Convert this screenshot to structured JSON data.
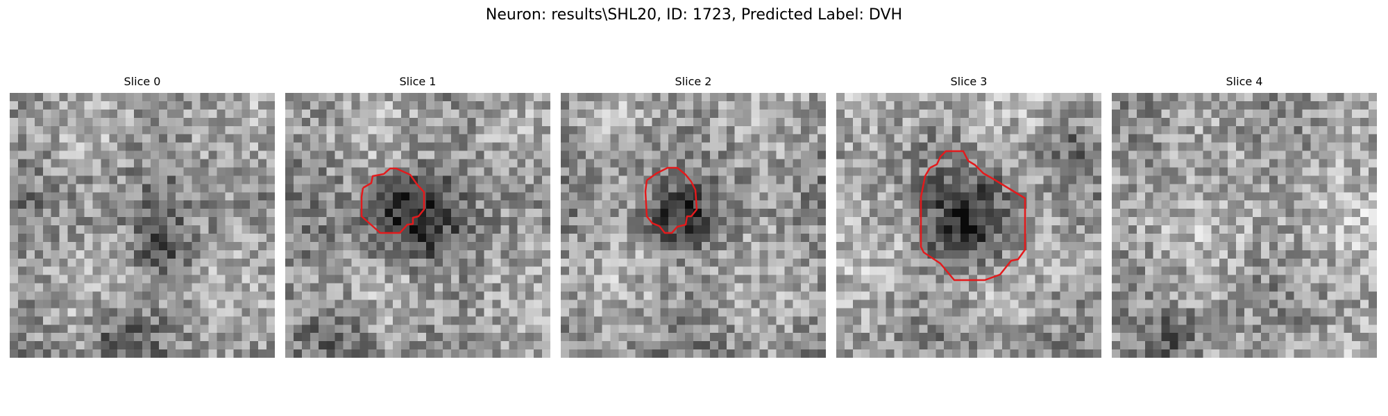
{
  "figure": {
    "title": "Neuron: results\\SHL20, ID: 1723, Predicted Label: DVH"
  },
  "slices": [
    {
      "title": "Slice 0",
      "has_contour": false
    },
    {
      "title": "Slice 1",
      "has_contour": true
    },
    {
      "title": "Slice 2",
      "has_contour": true
    },
    {
      "title": "Slice 3",
      "has_contour": true
    },
    {
      "title": "Slice 4",
      "has_contour": false
    }
  ],
  "colors": {
    "contour": "#e31a1c"
  }
}
